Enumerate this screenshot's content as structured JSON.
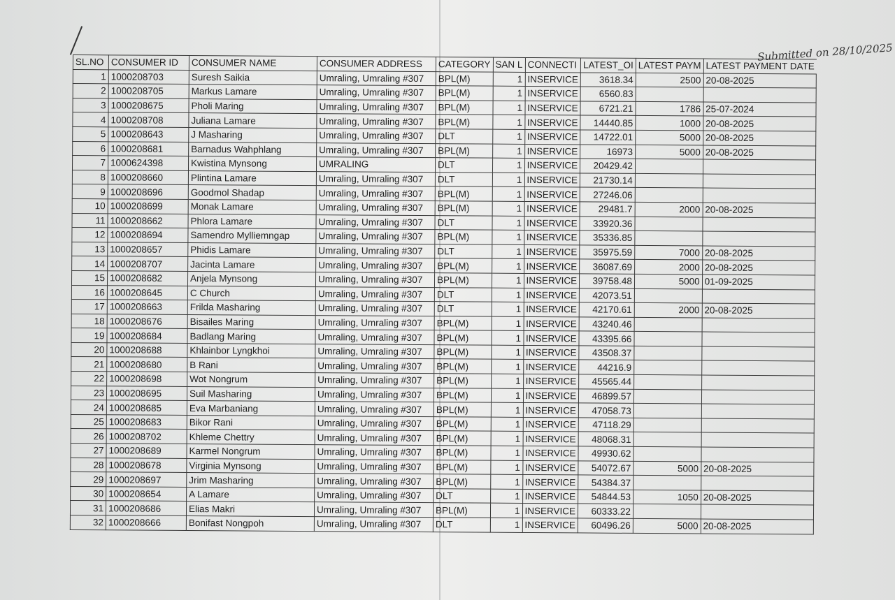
{
  "annotation": "Submitted on 28/10/2025",
  "columns": [
    "SL.NO",
    "CONSUMER ID",
    "CONSUMER NAME",
    "CONSUMER ADDRESS",
    "CATEGORY",
    "SAN L",
    "CONNECTI",
    "LATEST_OI",
    "LATEST PAYM",
    "LATEST PAYMENT DATE"
  ],
  "tick_mark": "✓",
  "rows": [
    {
      "sl": 1,
      "id": "1000208703",
      "name": "Suresh Saikia",
      "address": "Umraling, Umraling #307",
      "category": "BPL(M)",
      "san": 1,
      "connection": "INSERVICE",
      "latest_os": "3618.34",
      "payment": "2500",
      "date": "20-08-2025",
      "checked": false
    },
    {
      "sl": 2,
      "id": "1000208705",
      "name": "Markus Lamare",
      "address": "Umraling, Umraling #307",
      "category": "BPL(M)",
      "san": 1,
      "connection": "INSERVICE",
      "latest_os": "6560.83",
      "payment": "",
      "date": "",
      "checked": false
    },
    {
      "sl": 3,
      "id": "1000208675",
      "name": "Pholi Maring",
      "address": "Umraling, Umraling #307",
      "category": "BPL(M)",
      "san": 1,
      "connection": "INSERVICE",
      "latest_os": "6721.21",
      "payment": "1786",
      "date": "25-07-2024",
      "checked": false
    },
    {
      "sl": 4,
      "id": "1000208708",
      "name": "Juliana Lamare",
      "address": "Umraling, Umraling #307",
      "category": "BPL(M)",
      "san": 1,
      "connection": "INSERVICE",
      "latest_os": "14440.85",
      "payment": "1000",
      "date": "20-08-2025",
      "checked": false
    },
    {
      "sl": 5,
      "id": "1000208643",
      "name": "J Masharing",
      "address": "Umraling, Umraling #307",
      "category": "DLT",
      "san": 1,
      "connection": "INSERVICE",
      "latest_os": "14722.01",
      "payment": "5000",
      "date": "20-08-2025",
      "checked": false
    },
    {
      "sl": 6,
      "id": "1000208681",
      "name": "Barnadus Wahphlang",
      "address": "Umraling, Umraling #307",
      "category": "BPL(M)",
      "san": 1,
      "connection": "INSERVICE",
      "latest_os": "16973",
      "payment": "5000",
      "date": "20-08-2025",
      "checked": false
    },
    {
      "sl": 7,
      "id": "1000624398",
      "name": "Kwistina Mynsong",
      "address": "UMRALING",
      "category": "DLT",
      "san": 1,
      "connection": "INSERVICE",
      "latest_os": "20429.42",
      "payment": "",
      "date": "",
      "checked": true
    },
    {
      "sl": 8,
      "id": "1000208660",
      "name": "Plintina Lamare",
      "address": "Umraling, Umraling #307",
      "category": "DLT",
      "san": 1,
      "connection": "INSERVICE",
      "latest_os": "21730.14",
      "payment": "",
      "date": "",
      "checked": true
    },
    {
      "sl": 9,
      "id": "1000208696",
      "name": "Goodmol Shadap",
      "address": "Umraling, Umraling #307",
      "category": "BPL(M)",
      "san": 1,
      "connection": "INSERVICE",
      "latest_os": "27246.06",
      "payment": "",
      "date": "",
      "checked": true
    },
    {
      "sl": 10,
      "id": "1000208699",
      "name": "Monak Lamare",
      "address": "Umraling, Umraling #307",
      "category": "BPL(M)",
      "san": 1,
      "connection": "INSERVICE",
      "latest_os": "29481.7",
      "payment": "2000",
      "date": "20-08-2025",
      "checked": false
    },
    {
      "sl": 11,
      "id": "1000208662",
      "name": "Phlora Lamare",
      "address": "Umraling, Umraling #307",
      "category": "DLT",
      "san": 1,
      "connection": "INSERVICE",
      "latest_os": "33920.36",
      "payment": "",
      "date": "",
      "checked": true
    },
    {
      "sl": 12,
      "id": "1000208694",
      "name": "Samendro Mylliemngap",
      "address": "Umraling, Umraling #307",
      "category": "BPL(M)",
      "san": 1,
      "connection": "INSERVICE",
      "latest_os": "35336.85",
      "payment": "",
      "date": "",
      "checked": true
    },
    {
      "sl": 13,
      "id": "1000208657",
      "name": "Phidis Lamare",
      "address": "Umraling, Umraling #307",
      "category": "DLT",
      "san": 1,
      "connection": "INSERVICE",
      "latest_os": "35975.59",
      "payment": "7000",
      "date": "20-08-2025",
      "checked": false
    },
    {
      "sl": 14,
      "id": "1000208707",
      "name": "Jacinta Lamare",
      "address": "Umraling, Umraling #307",
      "category": "BPL(M)",
      "san": 1,
      "connection": "INSERVICE",
      "latest_os": "36087.69",
      "payment": "2000",
      "date": "20-08-2025",
      "checked": false
    },
    {
      "sl": 15,
      "id": "1000208682",
      "name": "Anjela Mynsong",
      "address": "Umraling, Umraling #307",
      "category": "BPL(M)",
      "san": 1,
      "connection": "INSERVICE",
      "latest_os": "39758.48",
      "payment": "5000",
      "date": "01-09-2025",
      "checked": false
    },
    {
      "sl": 16,
      "id": "1000208645",
      "name": "C Church",
      "address": "Umraling, Umraling #307",
      "category": "DLT",
      "san": 1,
      "connection": "INSERVICE",
      "latest_os": "42073.51",
      "payment": "",
      "date": "",
      "checked": true
    },
    {
      "sl": 17,
      "id": "1000208663",
      "name": "Frilda Masharing",
      "address": "Umraling, Umraling #307",
      "category": "DLT",
      "san": 1,
      "connection": "INSERVICE",
      "latest_os": "42170.61",
      "payment": "2000",
      "date": "20-08-2025",
      "checked": false
    },
    {
      "sl": 18,
      "id": "1000208676",
      "name": "Bisailes Maring",
      "address": "Umraling, Umraling #307",
      "category": "BPL(M)",
      "san": 1,
      "connection": "INSERVICE",
      "latest_os": "43240.46",
      "payment": "",
      "date": "",
      "checked": true
    },
    {
      "sl": 19,
      "id": "1000208684",
      "name": "Badlang Maring",
      "address": "Umraling, Umraling #307",
      "category": "BPL(M)",
      "san": 1,
      "connection": "INSERVICE",
      "latest_os": "43395.66",
      "payment": "",
      "date": "",
      "checked": true
    },
    {
      "sl": 20,
      "id": "1000208688",
      "name": "Khlainbor Lyngkhoi",
      "address": "Umraling, Umraling #307",
      "category": "BPL(M)",
      "san": 1,
      "connection": "INSERVICE",
      "latest_os": "43508.37",
      "payment": "",
      "date": "",
      "checked": true
    },
    {
      "sl": 21,
      "id": "1000208680",
      "name": "B Rani",
      "address": "Umraling, Umraling #307",
      "category": "BPL(M)",
      "san": 1,
      "connection": "INSERVICE",
      "latest_os": "44216.9",
      "payment": "",
      "date": "",
      "checked": true
    },
    {
      "sl": 22,
      "id": "1000208698",
      "name": "Wot Nongrum",
      "address": "Umraling, Umraling #307",
      "category": "BPL(M)",
      "san": 1,
      "connection": "INSERVICE",
      "latest_os": "45565.44",
      "payment": "",
      "date": "",
      "checked": true
    },
    {
      "sl": 23,
      "id": "1000208695",
      "name": "Suil Masharing",
      "address": "Umraling, Umraling #307",
      "category": "BPL(M)",
      "san": 1,
      "connection": "INSERVICE",
      "latest_os": "46899.57",
      "payment": "",
      "date": "",
      "checked": true
    },
    {
      "sl": 24,
      "id": "1000208685",
      "name": "Eva Marbaniang",
      "address": "Umraling, Umraling #307",
      "category": "BPL(M)",
      "san": 1,
      "connection": "INSERVICE",
      "latest_os": "47058.73",
      "payment": "",
      "date": "",
      "checked": true
    },
    {
      "sl": 25,
      "id": "1000208683",
      "name": "Bikor Rani",
      "address": "Umraling, Umraling #307",
      "category": "BPL(M)",
      "san": 1,
      "connection": "INSERVICE",
      "latest_os": "47118.29",
      "payment": "",
      "date": "",
      "checked": true
    },
    {
      "sl": 26,
      "id": "1000208702",
      "name": "Khleme Chettry",
      "address": "Umraling, Umraling #307",
      "category": "BPL(M)",
      "san": 1,
      "connection": "INSERVICE",
      "latest_os": "48068.31",
      "payment": "",
      "date": "",
      "checked": true
    },
    {
      "sl": 27,
      "id": "1000208689",
      "name": "Karmel Nongrum",
      "address": "Umraling, Umraling #307",
      "category": "BPL(M)",
      "san": 1,
      "connection": "INSERVICE",
      "latest_os": "49930.62",
      "payment": "",
      "date": "",
      "checked": true
    },
    {
      "sl": 28,
      "id": "1000208678",
      "name": "Virginia Mynsong",
      "address": "Umraling, Umraling #307",
      "category": "BPL(M)",
      "san": 1,
      "connection": "INSERVICE",
      "latest_os": "54072.67",
      "payment": "5000",
      "date": "20-08-2025",
      "checked": false
    },
    {
      "sl": 29,
      "id": "1000208697",
      "name": "Jrim Masharing",
      "address": "Umraling, Umraling #307",
      "category": "BPL(M)",
      "san": 1,
      "connection": "INSERVICE",
      "latest_os": "54384.37",
      "payment": "",
      "date": "",
      "checked": true
    },
    {
      "sl": 30,
      "id": "1000208654",
      "name": "A Lamare",
      "address": "Umraling, Umraling #307",
      "category": "DLT",
      "san": 1,
      "connection": "INSERVICE",
      "latest_os": "54844.53",
      "payment": "1050",
      "date": "20-08-2025",
      "checked": false
    },
    {
      "sl": 31,
      "id": "1000208686",
      "name": "Elias Makri",
      "address": "Umraling, Umraling #307",
      "category": "BPL(M)",
      "san": 1,
      "connection": "INSERVICE",
      "latest_os": "60333.22",
      "payment": "",
      "date": "",
      "checked": true
    },
    {
      "sl": 32,
      "id": "1000208666",
      "name": "Bonifast Nongpoh",
      "address": "Umraling, Umraling #307",
      "category": "DLT",
      "san": 1,
      "connection": "INSERVICE",
      "latest_os": "60496.26",
      "payment": "5000",
      "date": "20-08-2025",
      "checked": false
    }
  ]
}
